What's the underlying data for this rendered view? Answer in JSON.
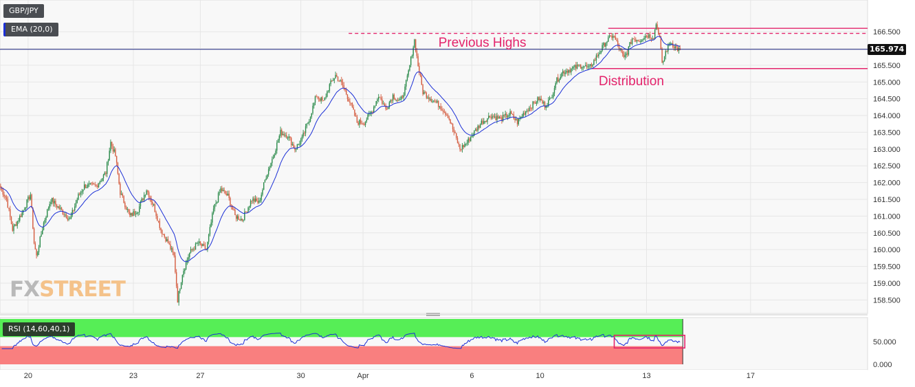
{
  "symbol": "GBP/JPY",
  "ema_label": "EMA (20,0)",
  "rsi_label": "RSI (14,60,40,1)",
  "last_price": "165.974",
  "watermark": {
    "part1": "FX",
    "part2": "STREET"
  },
  "colors": {
    "bull": "#2a8a4a",
    "bear": "#d45b3e",
    "ema": "#1b2fd6",
    "annotation": "#e3236b",
    "rsi_overbought_zone": "#56ee56",
    "rsi_oversold_zone": "#f97f7f"
  },
  "chart_data": {
    "type": "candlestick",
    "price_ticks": [
      "166.500",
      "166.000",
      "165.500",
      "165.000",
      "164.500",
      "164.000",
      "163.500",
      "163.000",
      "162.500",
      "162.000",
      "161.500",
      "161.000",
      "160.500",
      "160.000",
      "159.500",
      "159.000",
      "158.500"
    ],
    "ylim": [
      158.2,
      166.85
    ],
    "x_labels": [
      {
        "label": "20",
        "bar": 23
      },
      {
        "label": "23",
        "bar": 111
      },
      {
        "label": "27",
        "bar": 167
      },
      {
        "label": "30",
        "bar": 251
      },
      {
        "label": "Apr",
        "bar": 303
      },
      {
        "label": "6",
        "bar": 394
      },
      {
        "label": "10",
        "bar": 451
      },
      {
        "label": "13",
        "bar": 540
      },
      {
        "label": "17",
        "bar": 627
      }
    ],
    "total_bars": 645,
    "anchors": [
      [
        0,
        161.85
      ],
      [
        5,
        161.5
      ],
      [
        10,
        160.6
      ],
      [
        18,
        161.1
      ],
      [
        25,
        161.65
      ],
      [
        28,
        160.2
      ],
      [
        30,
        159.8
      ],
      [
        36,
        160.8
      ],
      [
        42,
        161.5
      ],
      [
        50,
        161.2
      ],
      [
        58,
        160.9
      ],
      [
        65,
        161.6
      ],
      [
        70,
        161.9
      ],
      [
        80,
        161.9
      ],
      [
        88,
        162.3
      ],
      [
        92,
        163.2
      ],
      [
        96,
        162.8
      ],
      [
        100,
        161.7
      ],
      [
        108,
        161.0
      ],
      [
        115,
        161.2
      ],
      [
        122,
        161.8
      ],
      [
        128,
        161.3
      ],
      [
        134,
        160.6
      ],
      [
        140,
        160.2
      ],
      [
        145,
        159.8
      ],
      [
        148,
        158.5
      ],
      [
        152,
        159.3
      ],
      [
        158,
        159.9
      ],
      [
        165,
        160.2
      ],
      [
        172,
        160.0
      ],
      [
        178,
        161.2
      ],
      [
        184,
        161.8
      ],
      [
        190,
        161.6
      ],
      [
        196,
        161.0
      ],
      [
        202,
        160.9
      ],
      [
        210,
        161.5
      ],
      [
        216,
        161.4
      ],
      [
        222,
        162.2
      ],
      [
        228,
        162.8
      ],
      [
        234,
        163.5
      ],
      [
        240,
        163.4
      ],
      [
        246,
        163.0
      ],
      [
        252,
        163.3
      ],
      [
        258,
        163.9
      ],
      [
        264,
        164.6
      ],
      [
        270,
        164.4
      ],
      [
        275,
        164.9
      ],
      [
        280,
        165.2
      ],
      [
        286,
        164.9
      ],
      [
        292,
        164.4
      ],
      [
        298,
        163.8
      ],
      [
        304,
        163.8
      ],
      [
        310,
        164.1
      ],
      [
        316,
        164.6
      ],
      [
        322,
        164.2
      ],
      [
        328,
        164.6
      ],
      [
        334,
        164.4
      ],
      [
        338,
        164.8
      ],
      [
        341,
        165.3
      ],
      [
        346,
        166.25
      ],
      [
        349,
        165.5
      ],
      [
        353,
        164.7
      ],
      [
        360,
        164.5
      ],
      [
        367,
        164.3
      ],
      [
        374,
        164.0
      ],
      [
        380,
        163.4
      ],
      [
        384,
        163.0
      ],
      [
        390,
        163.2
      ],
      [
        396,
        163.5
      ],
      [
        402,
        163.8
      ],
      [
        410,
        164.0
      ],
      [
        418,
        163.9
      ],
      [
        426,
        164.05
      ],
      [
        432,
        163.8
      ],
      [
        438,
        164.1
      ],
      [
        444,
        164.3
      ],
      [
        450,
        164.5
      ],
      [
        455,
        164.3
      ],
      [
        460,
        164.5
      ],
      [
        464,
        165.0
      ],
      [
        470,
        165.3
      ],
      [
        478,
        165.4
      ],
      [
        486,
        165.5
      ],
      [
        492,
        165.4
      ],
      [
        500,
        165.85
      ],
      [
        506,
        166.2
      ],
      [
        512,
        166.4
      ],
      [
        516,
        166.1
      ],
      [
        521,
        165.7
      ],
      [
        524,
        165.9
      ],
      [
        528,
        166.3
      ],
      [
        534,
        166.25
      ],
      [
        540,
        166.4
      ],
      [
        546,
        166.35
      ],
      [
        548,
        166.75
      ],
      [
        551,
        166.35
      ],
      [
        553,
        165.5
      ],
      [
        556,
        165.9
      ],
      [
        560,
        166.2
      ],
      [
        565,
        166.0
      ],
      [
        568,
        165.95
      ]
    ],
    "ema_period": 20,
    "levels": [
      {
        "type": "dashed",
        "value": 166.45,
        "from_bar": 291,
        "to_bar": 645
      },
      {
        "type": "solid",
        "value": 166.6,
        "from_bar": 508,
        "to_bar": 645
      },
      {
        "type": "solid",
        "value": 165.4,
        "from_bar": 494,
        "to_bar": 645
      }
    ],
    "annotations": [
      {
        "text": "Previous Highs",
        "bar": 366,
        "value": 166.05
      },
      {
        "text": "Distribution",
        "bar": 500,
        "value": 164.9
      }
    ],
    "rsi": {
      "ticks": [
        "50.000",
        "0.000"
      ],
      "ylim": [
        0,
        100
      ],
      "overbought": 60,
      "oversold": 40,
      "highlight": {
        "from_bar": 513,
        "to_bar": 572,
        "y_top": 64,
        "y_bottom": 36
      }
    }
  }
}
